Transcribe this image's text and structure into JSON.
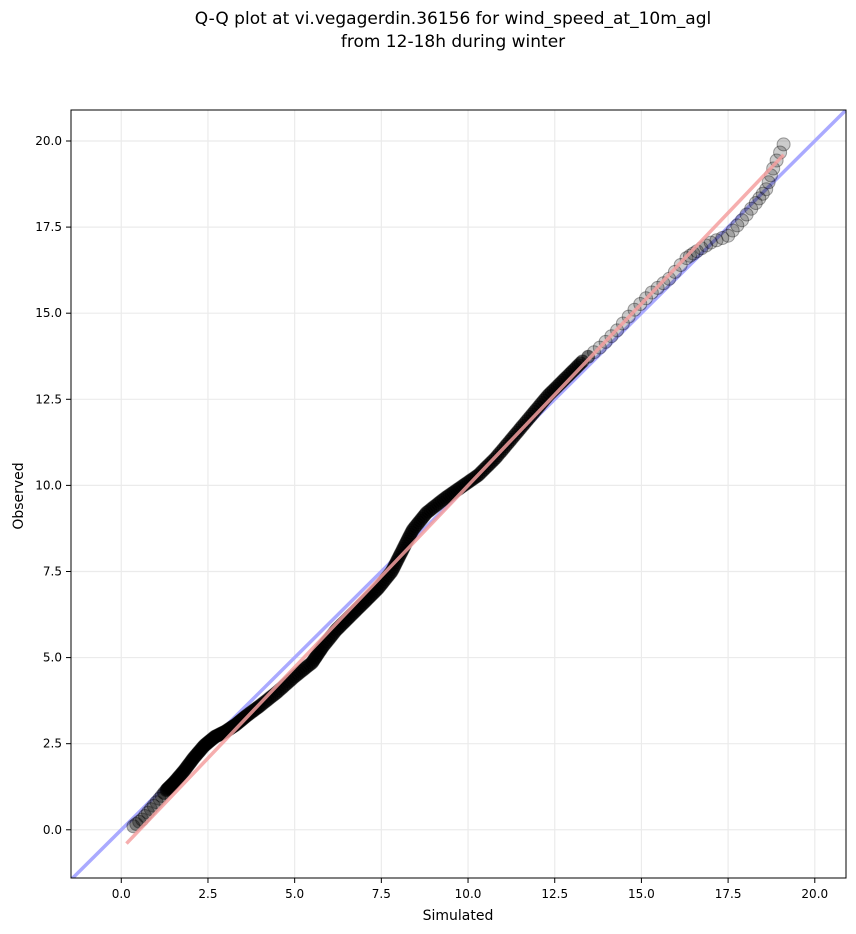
{
  "chart_data": {
    "type": "scatter",
    "title_lines": [
      "Q-Q plot at vi.vegagerdin.36156 for wind_speed_at_10m_agl",
      "from 12-18h during winter"
    ],
    "xlabel": "Simulated",
    "ylabel": "Observed",
    "xlim": [
      -1.45,
      20.9
    ],
    "ylim": [
      -1.4,
      20.9
    ],
    "xticks": [
      0.0,
      2.5,
      5.0,
      7.5,
      10.0,
      12.5,
      15.0,
      17.5,
      20.0
    ],
    "yticks": [
      0.0,
      2.5,
      5.0,
      7.5,
      10.0,
      12.5,
      15.0,
      17.5,
      20.0
    ],
    "xtick_labels": [
      "0.0",
      "2.5",
      "5.0",
      "7.5",
      "10.0",
      "12.5",
      "15.0",
      "17.5",
      "20.0"
    ],
    "ytick_labels": [
      "0.0",
      "2.5",
      "5.0",
      "7.5",
      "10.0",
      "12.5",
      "15.0",
      "17.5",
      "20.0"
    ],
    "grid": true,
    "quantile_curve": [
      [
        0.35,
        0.1
      ],
      [
        0.6,
        0.3
      ],
      [
        0.85,
        0.6
      ],
      [
        1.1,
        0.9
      ],
      [
        1.3,
        1.15
      ],
      [
        1.5,
        1.35
      ],
      [
        1.8,
        1.7
      ],
      [
        2.1,
        2.1
      ],
      [
        2.4,
        2.45
      ],
      [
        2.7,
        2.7
      ],
      [
        3.0,
        2.85
      ],
      [
        3.3,
        3.05
      ],
      [
        3.6,
        3.3
      ],
      [
        4.0,
        3.6
      ],
      [
        4.5,
        4.0
      ],
      [
        5.0,
        4.45
      ],
      [
        5.5,
        4.85
      ],
      [
        5.8,
        5.3
      ],
      [
        6.2,
        5.8
      ],
      [
        6.6,
        6.2
      ],
      [
        7.0,
        6.6
      ],
      [
        7.4,
        7.0
      ],
      [
        7.8,
        7.5
      ],
      [
        8.1,
        8.1
      ],
      [
        8.4,
        8.7
      ],
      [
        8.8,
        9.2
      ],
      [
        9.3,
        9.6
      ],
      [
        9.8,
        9.95
      ],
      [
        10.3,
        10.3
      ],
      [
        10.8,
        10.8
      ],
      [
        11.3,
        11.4
      ],
      [
        11.8,
        12.0
      ],
      [
        12.3,
        12.6
      ],
      [
        12.8,
        13.1
      ],
      [
        13.3,
        13.6
      ],
      [
        13.8,
        14.0
      ],
      [
        14.3,
        14.5
      ],
      [
        14.8,
        15.1
      ],
      [
        15.3,
        15.6
      ],
      [
        15.8,
        16.0
      ],
      [
        16.3,
        16.6
      ],
      [
        16.6,
        16.8
      ],
      [
        17.0,
        17.05
      ],
      [
        17.5,
        17.25
      ],
      [
        17.9,
        17.7
      ],
      [
        18.3,
        18.2
      ],
      [
        18.6,
        18.6
      ],
      [
        18.8,
        19.2
      ],
      [
        19.1,
        19.9
      ]
    ],
    "identity_line": {
      "color": "#aaaaff"
    },
    "fit_line": {
      "from": [
        0.15,
        -0.4
      ],
      "to": [
        19.1,
        19.6
      ],
      "color": "#f4a0a0"
    },
    "point_color": "#000000"
  }
}
